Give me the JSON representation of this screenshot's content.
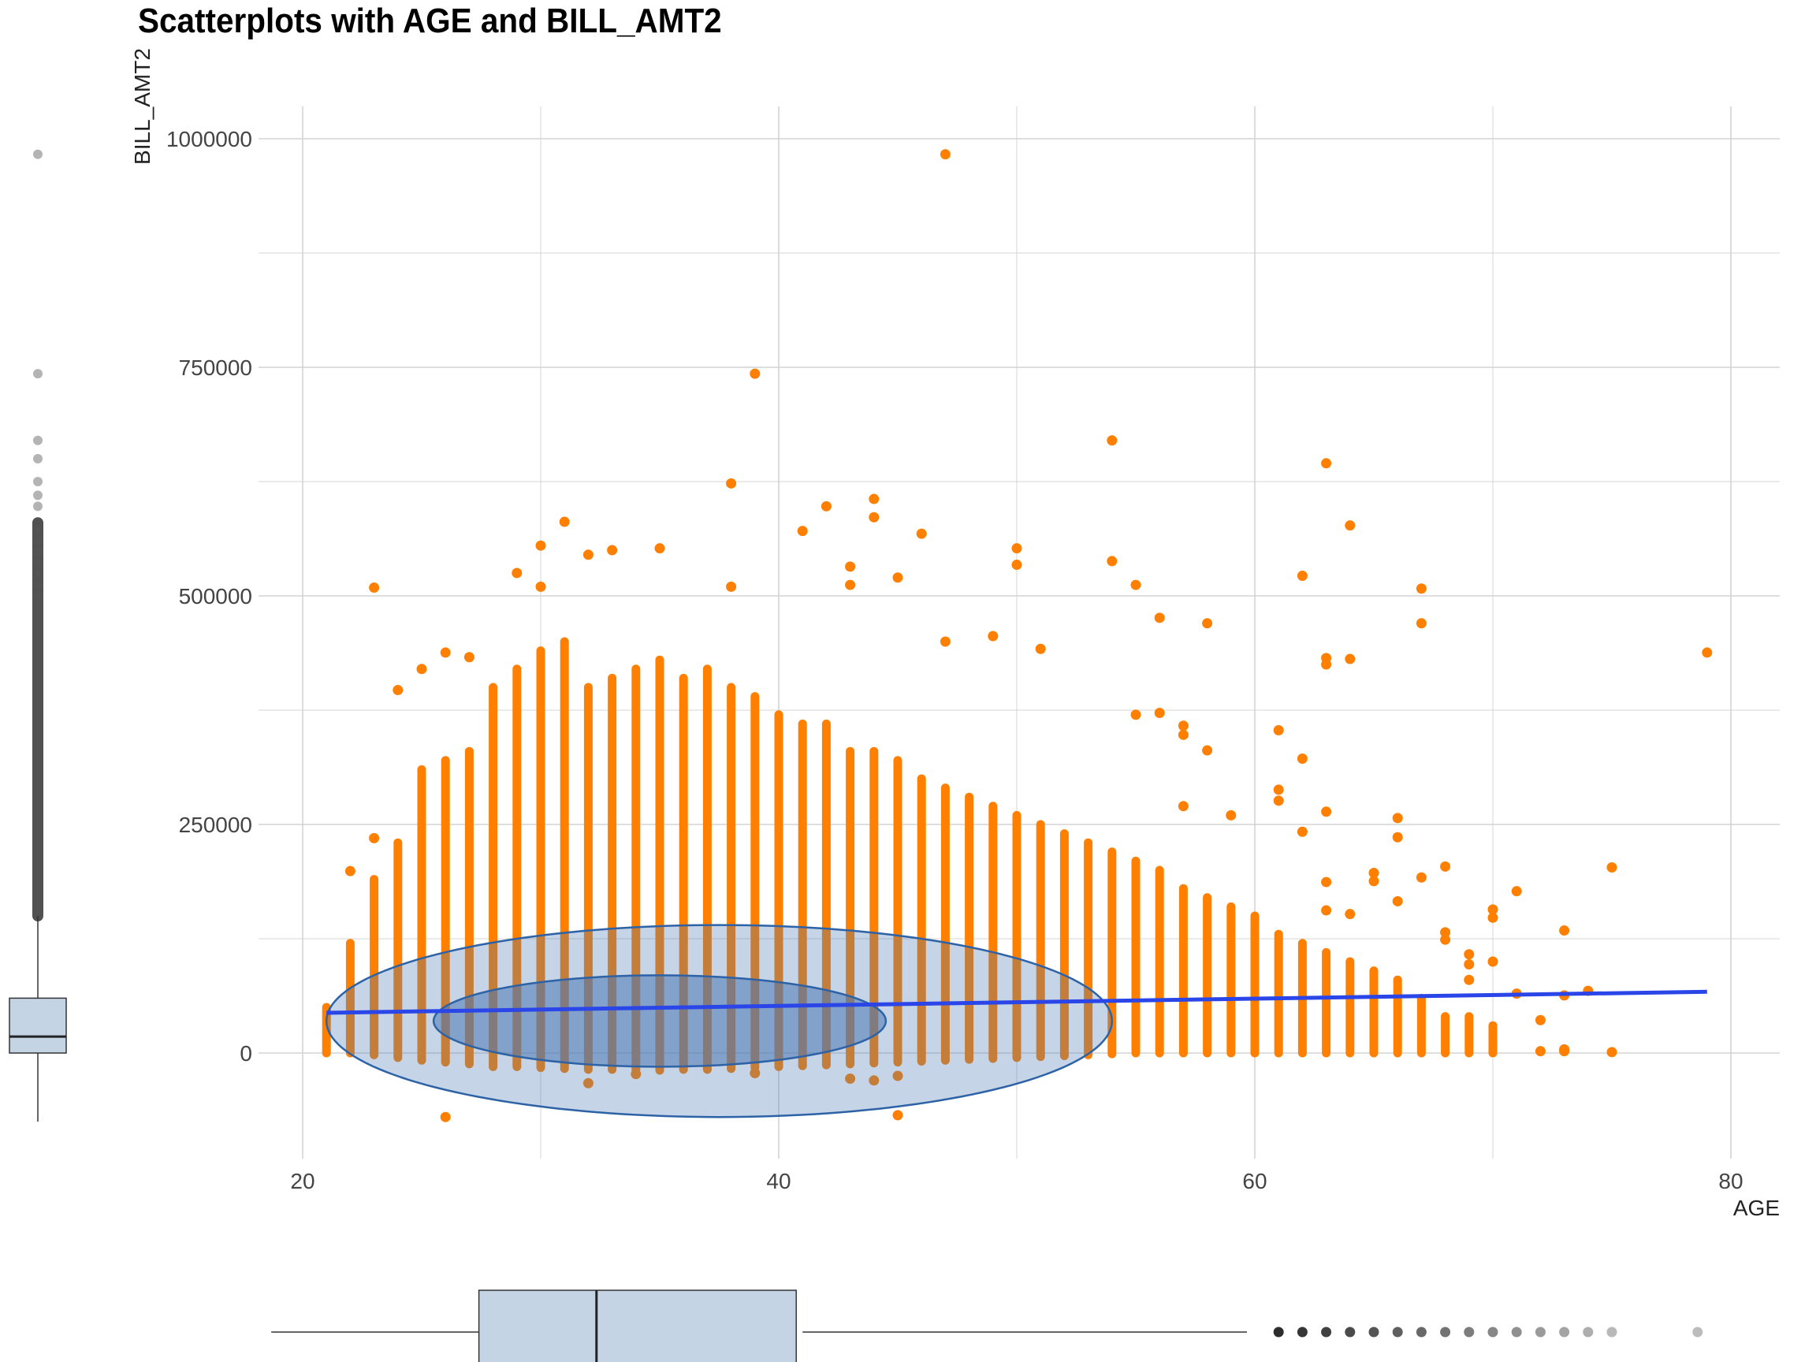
{
  "colors": {
    "points": "#ff7f00",
    "fit_line": "#2a45e8",
    "ellipse_fill": "#4a78b4",
    "ellipse_stroke": "#2d63a6",
    "box_fill": "#c5d4e5",
    "grid": "#d4d4d4"
  },
  "chart_data": {
    "type": "scatter",
    "title": "Scatterplots with AGE and BILL_AMT2",
    "xlabel": "AGE",
    "ylabel": "BILL_AMT2",
    "xlim": [
      16,
      82
    ],
    "ylim": [
      -120000,
      1035000
    ],
    "x_ticks": [
      20,
      40,
      60,
      80
    ],
    "x_tick_labels": [
      "20",
      "40",
      "60",
      "80"
    ],
    "y_ticks": [
      0,
      250000,
      500000,
      750000,
      1000000
    ],
    "y_tick_labels": [
      "0",
      "250000",
      "500000",
      "750000",
      "1000000"
    ],
    "grid": true,
    "columns": [
      {
        "age": 21,
        "min": 0,
        "max": 50000
      },
      {
        "age": 22,
        "min": 0,
        "max": 120000
      },
      {
        "age": 23,
        "min": -2000,
        "max": 190000
      },
      {
        "age": 24,
        "min": -5000,
        "max": 230000
      },
      {
        "age": 25,
        "min": -8000,
        "max": 310000
      },
      {
        "age": 26,
        "min": -10000,
        "max": 320000
      },
      {
        "age": 27,
        "min": -12000,
        "max": 330000
      },
      {
        "age": 28,
        "min": -15000,
        "max": 400000
      },
      {
        "age": 29,
        "min": -15000,
        "max": 420000
      },
      {
        "age": 30,
        "min": -16000,
        "max": 440000
      },
      {
        "age": 31,
        "min": -17000,
        "max": 450000
      },
      {
        "age": 32,
        "min": -18000,
        "max": 400000
      },
      {
        "age": 33,
        "min": -18000,
        "max": 410000
      },
      {
        "age": 34,
        "min": -19000,
        "max": 420000
      },
      {
        "age": 35,
        "min": -19000,
        "max": 430000
      },
      {
        "age": 36,
        "min": -18000,
        "max": 410000
      },
      {
        "age": 37,
        "min": -18000,
        "max": 420000
      },
      {
        "age": 38,
        "min": -17000,
        "max": 400000
      },
      {
        "age": 39,
        "min": -16000,
        "max": 390000
      },
      {
        "age": 40,
        "min": -15000,
        "max": 370000
      },
      {
        "age": 41,
        "min": -14000,
        "max": 360000
      },
      {
        "age": 42,
        "min": -13000,
        "max": 360000
      },
      {
        "age": 43,
        "min": -12000,
        "max": 330000
      },
      {
        "age": 44,
        "min": -11000,
        "max": 330000
      },
      {
        "age": 45,
        "min": -10000,
        "max": 320000
      },
      {
        "age": 46,
        "min": -9000,
        "max": 300000
      },
      {
        "age": 47,
        "min": -8000,
        "max": 290000
      },
      {
        "age": 48,
        "min": -7000,
        "max": 280000
      },
      {
        "age": 49,
        "min": -6000,
        "max": 270000
      },
      {
        "age": 50,
        "min": -5000,
        "max": 260000
      },
      {
        "age": 51,
        "min": -4000,
        "max": 250000
      },
      {
        "age": 52,
        "min": -3000,
        "max": 240000
      },
      {
        "age": 53,
        "min": -2000,
        "max": 230000
      },
      {
        "age": 54,
        "min": -1000,
        "max": 220000
      },
      {
        "age": 55,
        "min": 0,
        "max": 210000
      },
      {
        "age": 56,
        "min": 0,
        "max": 200000
      },
      {
        "age": 57,
        "min": 0,
        "max": 180000
      },
      {
        "age": 58,
        "min": 0,
        "max": 170000
      },
      {
        "age": 59,
        "min": 0,
        "max": 160000
      },
      {
        "age": 60,
        "min": 0,
        "max": 150000
      },
      {
        "age": 61,
        "min": 0,
        "max": 130000
      },
      {
        "age": 62,
        "min": 0,
        "max": 120000
      },
      {
        "age": 63,
        "min": 0,
        "max": 110000
      },
      {
        "age": 64,
        "min": 0,
        "max": 100000
      },
      {
        "age": 65,
        "min": 0,
        "max": 90000
      },
      {
        "age": 66,
        "min": 0,
        "max": 80000
      },
      {
        "age": 67,
        "min": 0,
        "max": 60000
      },
      {
        "age": 68,
        "min": 0,
        "max": 40000
      },
      {
        "age": 69,
        "min": 0,
        "max": 40000
      },
      {
        "age": 70,
        "min": 0,
        "max": 30000
      }
    ],
    "outliers": [
      {
        "x": 47,
        "y": 983000
      },
      {
        "x": 39,
        "y": 743000
      },
      {
        "x": 54,
        "y": 670000
      },
      {
        "x": 63,
        "y": 645000
      },
      {
        "x": 38,
        "y": 623000
      },
      {
        "x": 44,
        "y": 606000
      },
      {
        "x": 42,
        "y": 598000
      },
      {
        "x": 31,
        "y": 581000
      },
      {
        "x": 64,
        "y": 577000
      },
      {
        "x": 44,
        "y": 586000
      },
      {
        "x": 41,
        "y": 571000
      },
      {
        "x": 46,
        "y": 568000
      },
      {
        "x": 30,
        "y": 555000
      },
      {
        "x": 35,
        "y": 552000
      },
      {
        "x": 33,
        "y": 550000
      },
      {
        "x": 50,
        "y": 552000
      },
      {
        "x": 32,
        "y": 545000
      },
      {
        "x": 54,
        "y": 538000
      },
      {
        "x": 43,
        "y": 532000
      },
      {
        "x": 50,
        "y": 534000
      },
      {
        "x": 29,
        "y": 525000
      },
      {
        "x": 62,
        "y": 522000
      },
      {
        "x": 45,
        "y": 520000
      },
      {
        "x": 55,
        "y": 512000
      },
      {
        "x": 43,
        "y": 512000
      },
      {
        "x": 23,
        "y": 509000
      },
      {
        "x": 67,
        "y": 508000
      },
      {
        "x": 38,
        "y": 510000
      },
      {
        "x": 30,
        "y": 510000
      },
      {
        "x": 56,
        "y": 476000
      },
      {
        "x": 58,
        "y": 470000
      },
      {
        "x": 67,
        "y": 470000
      },
      {
        "x": 49,
        "y": 456000
      },
      {
        "x": 47,
        "y": 450000
      },
      {
        "x": 51,
        "y": 442000
      },
      {
        "x": 79,
        "y": 438000
      },
      {
        "x": 63,
        "y": 432000
      },
      {
        "x": 64,
        "y": 431000
      },
      {
        "x": 63,
        "y": 425000
      },
      {
        "x": 26,
        "y": 438000
      },
      {
        "x": 27,
        "y": 433000
      },
      {
        "x": 25,
        "y": 420000
      },
      {
        "x": 24,
        "y": 397000
      },
      {
        "x": 55,
        "y": 370000
      },
      {
        "x": 56,
        "y": 372000
      },
      {
        "x": 57,
        "y": 358000
      },
      {
        "x": 57,
        "y": 348000
      },
      {
        "x": 61,
        "y": 353000
      },
      {
        "x": 58,
        "y": 331000
      },
      {
        "x": 62,
        "y": 322000
      },
      {
        "x": 61,
        "y": 288000
      },
      {
        "x": 61,
        "y": 276000
      },
      {
        "x": 57,
        "y": 270000
      },
      {
        "x": 63,
        "y": 264000
      },
      {
        "x": 59,
        "y": 260000
      },
      {
        "x": 66,
        "y": 257000
      },
      {
        "x": 62,
        "y": 242000
      },
      {
        "x": 66,
        "y": 236000
      },
      {
        "x": 23,
        "y": 235000
      },
      {
        "x": 68,
        "y": 204000
      },
      {
        "x": 75,
        "y": 203000
      },
      {
        "x": 22,
        "y": 199000
      },
      {
        "x": 65,
        "y": 197000
      },
      {
        "x": 67,
        "y": 192000
      },
      {
        "x": 65,
        "y": 188000
      },
      {
        "x": 63,
        "y": 187000
      },
      {
        "x": 71,
        "y": 177000
      },
      {
        "x": 66,
        "y": 166000
      },
      {
        "x": 70,
        "y": 157000
      },
      {
        "x": 63,
        "y": 156000
      },
      {
        "x": 70,
        "y": 148000
      },
      {
        "x": 64,
        "y": 152000
      },
      {
        "x": 73,
        "y": 134000
      },
      {
        "x": 68,
        "y": 132000
      },
      {
        "x": 68,
        "y": 124000
      },
      {
        "x": 69,
        "y": 108000
      },
      {
        "x": 69,
        "y": 97000
      },
      {
        "x": 70,
        "y": 100000
      },
      {
        "x": 69,
        "y": 80000
      },
      {
        "x": 74,
        "y": 68000
      },
      {
        "x": 71,
        "y": 65000
      },
      {
        "x": 73,
        "y": 63000
      },
      {
        "x": 72,
        "y": 36000
      },
      {
        "x": 72,
        "y": 2000
      },
      {
        "x": 73,
        "y": 2000
      },
      {
        "x": 73,
        "y": 4000
      },
      {
        "x": 75,
        "y": 1000
      },
      {
        "x": 26,
        "y": -70000
      },
      {
        "x": 45,
        "y": -68000
      },
      {
        "x": 32,
        "y": -33000
      },
      {
        "x": 44,
        "y": -30000
      },
      {
        "x": 43,
        "y": -28000
      },
      {
        "x": 45,
        "y": -25000
      },
      {
        "x": 34,
        "y": -23000
      },
      {
        "x": 39,
        "y": -22000
      }
    ],
    "fit_line": {
      "x": [
        21,
        79
      ],
      "y": [
        44000,
        67000
      ]
    },
    "ellipse_outer": {
      "cx": 37.5,
      "cy": 35000,
      "rx": 16.5,
      "ry": 105000
    },
    "ellipse_inner": {
      "cx": 35,
      "cy": 35000,
      "rx": 9.5,
      "ry": 50000
    },
    "boxplot_y": {
      "min": 0,
      "q1": 0,
      "median": 18000,
      "q3": 60000,
      "whisker_low": -75000,
      "whisker_high": 150000,
      "outliers_from": 150000,
      "outliers_to": 580000,
      "extra_outliers": [
        983000,
        743000,
        670000,
        650000,
        625000,
        610000,
        598000
      ]
    },
    "boxplot_x": {
      "whisker_low": 21,
      "q1": 28,
      "median": 34,
      "q3": 41,
      "whisker_high": 60,
      "outliers": [
        61,
        62,
        63,
        64,
        65,
        66,
        67,
        68,
        69,
        70,
        71,
        72,
        73,
        74,
        75,
        79
      ]
    }
  }
}
